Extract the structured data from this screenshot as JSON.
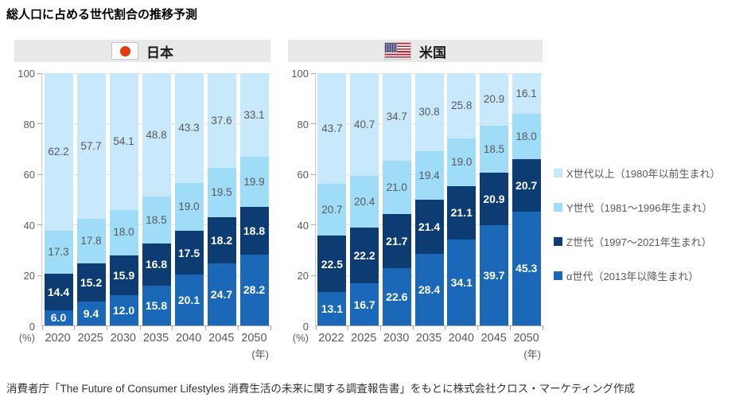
{
  "title": "総人口に占める世代割合の推移予測",
  "footer": "消費者庁「The Future of Consumer Lifestyles 消費生活の未来に関する調査報告書」をもとに株式会社クロス・マーケティング作成",
  "colors": {
    "gen_x": "#C7E9FB",
    "gen_y": "#9EDCF8",
    "gen_z": "#0C3C72",
    "gen_alpha": "#1A68B7",
    "header_bg": "#E9E9E9",
    "grid_line": "#E3E3E3",
    "axis_line": "#A9A9A9",
    "text_gray": "#595959",
    "japan_flag_red": "#E8380D",
    "us_flag_red": "#B22234",
    "us_flag_blue": "#3C3B6E"
  },
  "legend": {
    "items": [
      {
        "label": "X世代以上（1980年以前生まれ）",
        "color_key": "gen_x"
      },
      {
        "label": "Y世代（1981〜1996年生まれ）",
        "color_key": "gen_y"
      },
      {
        "label": "Z世代（1997〜2021年生まれ）",
        "color_key": "gen_z"
      },
      {
        "label": "α世代（2013年以降生まれ）",
        "color_key": "gen_alpha"
      }
    ]
  },
  "chart_data": [
    {
      "type": "bar",
      "stacked": true,
      "title": "日本",
      "flag": "japan",
      "y_unit": "(%)",
      "x_unit": "(年)",
      "ylim": [
        0,
        100
      ],
      "yticks": [
        0,
        20,
        40,
        60,
        80,
        100
      ],
      "grid": true,
      "legend_position": "right",
      "categories": [
        "2020",
        "2025",
        "2030",
        "2035",
        "2040",
        "2045",
        "2050"
      ],
      "series": [
        {
          "name": "X世代以上（1980年以前生まれ）",
          "color_key": "gen_x",
          "values": [
            62.2,
            57.7,
            54.1,
            48.8,
            43.3,
            37.6,
            33.1
          ]
        },
        {
          "name": "Y世代（1981〜1996年生まれ）",
          "color_key": "gen_y",
          "values": [
            17.3,
            17.8,
            18.0,
            18.5,
            19.0,
            19.5,
            19.9
          ]
        },
        {
          "name": "Z世代（1997〜2021年生まれ）",
          "color_key": "gen_z",
          "values": [
            14.4,
            15.2,
            15.9,
            16.8,
            17.5,
            18.2,
            18.8
          ]
        },
        {
          "name": "α世代（2013年以降生まれ）",
          "color_key": "gen_alpha",
          "values": [
            6.0,
            9.4,
            12.0,
            15.8,
            20.1,
            24.7,
            28.2
          ]
        }
      ]
    },
    {
      "type": "bar",
      "stacked": true,
      "title": "米国",
      "flag": "us",
      "y_unit": "(%)",
      "x_unit": "(年)",
      "ylim": [
        0,
        100
      ],
      "yticks": [
        0,
        20,
        40,
        60,
        80,
        100
      ],
      "grid": true,
      "legend_position": "right",
      "categories": [
        "2022",
        "2025",
        "2030",
        "2035",
        "2040",
        "2045",
        "2050"
      ],
      "series": [
        {
          "name": "X世代以上（1980年以前生まれ）",
          "color_key": "gen_x",
          "values": [
            43.7,
            40.7,
            34.7,
            30.8,
            25.8,
            20.9,
            16.1
          ]
        },
        {
          "name": "Y世代（1981〜1996年生まれ）",
          "color_key": "gen_y",
          "values": [
            20.7,
            20.4,
            21.0,
            19.4,
            19.0,
            18.5,
            18.0
          ]
        },
        {
          "name": "Z世代（1997〜2021年生まれ）",
          "color_key": "gen_z",
          "values": [
            22.5,
            22.2,
            21.7,
            21.4,
            21.1,
            20.9,
            20.7
          ]
        },
        {
          "name": "α世代（2013年以降生まれ）",
          "color_key": "gen_alpha",
          "values": [
            13.1,
            16.7,
            22.6,
            28.4,
            34.1,
            39.7,
            45.3
          ]
        }
      ]
    }
  ]
}
